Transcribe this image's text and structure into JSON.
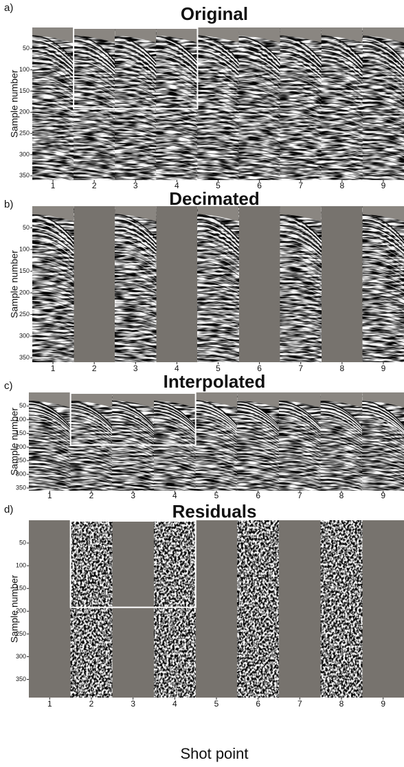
{
  "chart_data": [
    {
      "type": "image",
      "panel": "a)",
      "title": "Original",
      "ylabel": "Sample number",
      "categories": [
        "1",
        "2",
        "3",
        "4",
        "5",
        "6",
        "7",
        "8",
        "9"
      ],
      "ylim": [
        0,
        360
      ],
      "yticks": [
        50,
        100,
        150,
        200,
        250,
        300,
        350
      ]
    },
    {
      "type": "image",
      "panel": "b)",
      "title": "Decimated",
      "ylabel": "Sample number",
      "categories": [
        "1",
        "2",
        "3",
        "4",
        "5",
        "6",
        "7",
        "8",
        "9"
      ],
      "ylim": [
        0,
        360
      ],
      "yticks": [
        50,
        100,
        150,
        200,
        250,
        300,
        350
      ]
    },
    {
      "type": "image",
      "panel": "c)",
      "title": "Interpolated",
      "ylabel": "Sample number",
      "categories": [
        "1",
        "2",
        "3",
        "4",
        "5",
        "6",
        "7",
        "8",
        "9"
      ],
      "ylim": [
        0,
        360
      ],
      "yticks": [
        50,
        100,
        150,
        200,
        250,
        300,
        350
      ]
    },
    {
      "type": "image",
      "panel": "d)",
      "title": "Residuals",
      "ylabel": "Sample number",
      "xlabel": "Shot point",
      "categories": [
        "1",
        "2",
        "3",
        "4",
        "5",
        "6",
        "7",
        "8",
        "9"
      ],
      "ylim": [
        0,
        390
      ],
      "yticks": [
        50,
        100,
        150,
        200,
        250,
        300,
        350
      ]
    }
  ]
}
